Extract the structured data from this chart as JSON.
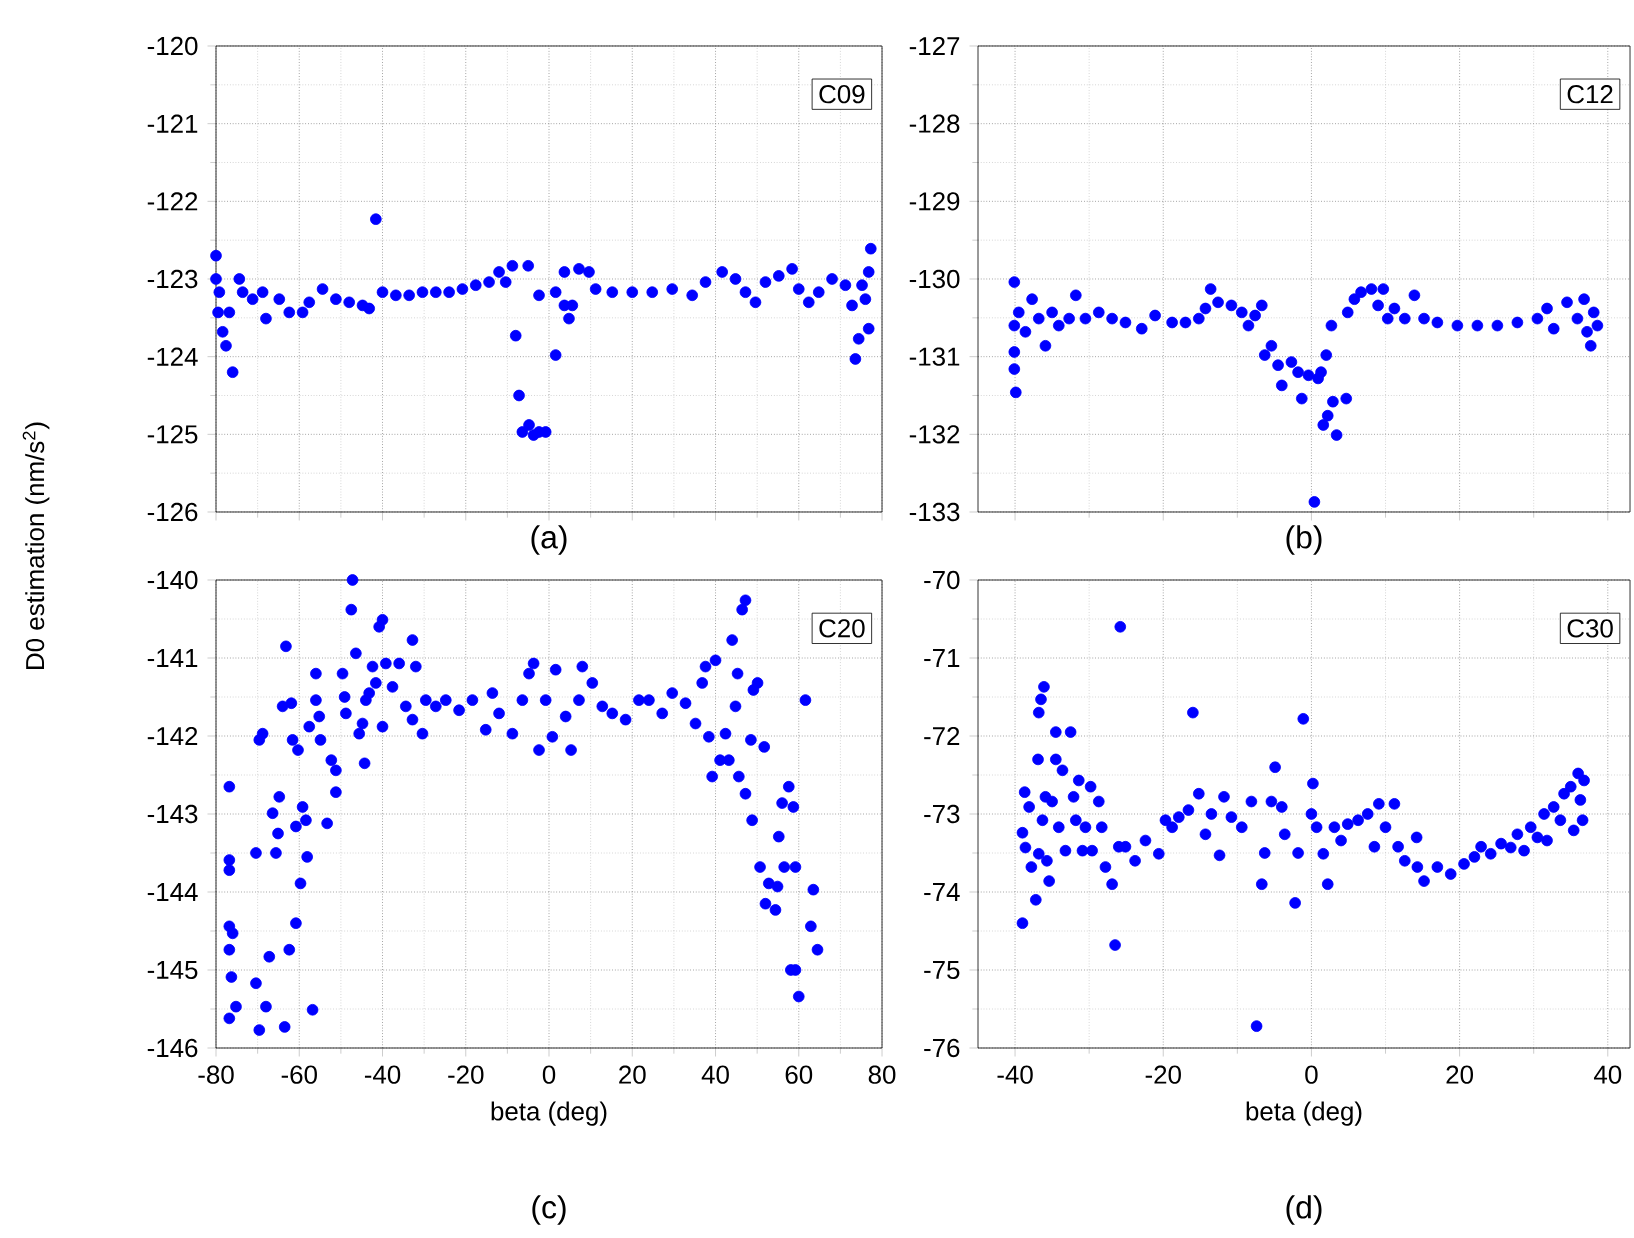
{
  "chart_data": [
    {
      "type": "scatter",
      "title": "C09",
      "ylabel": "D0 estimation (nm/s$^{2}$)",
      "annotations": [
        "(a)"
      ],
      "color": "#0000ff",
      "marker": "circle",
      "grid": true,
      "tick_labels": "y",
      "xlim": [
        -80,
        80
      ],
      "ylim": [
        -126,
        -120
      ],
      "xticks": [
        -80,
        -60,
        -40,
        -20,
        0,
        20,
        40,
        60,
        80
      ],
      "yticks": [
        -126,
        -125,
        -124,
        -123,
        -122,
        -121,
        -120
      ],
      "x": [
        -80,
        -80,
        -79.2,
        -79.5,
        -78.4,
        -77.6,
        -76,
        -76.8,
        -74.4,
        -73.6,
        -71.2,
        -68.8,
        -68,
        -64.8,
        -62.4,
        -59.2,
        -57.6,
        -54.4,
        -51.2,
        -48,
        -44.8,
        -43.2,
        -41.6,
        -40,
        -36.8,
        -33.6,
        -30.4,
        -27.2,
        -24,
        -20.8,
        -17.6,
        -14.4,
        -12,
        -10.4,
        -8.8,
        -8,
        -7.2,
        -6.4,
        -5,
        -4.8,
        -3.7,
        -2.4,
        -0.8,
        1.6,
        -2.4,
        1.6,
        3.7,
        4.8,
        5.6,
        3.7,
        7.2,
        9.6,
        11.2,
        15.2,
        20,
        24.8,
        29.6,
        34.4,
        37.6,
        41.6,
        44.8,
        47.2,
        49.6,
        52,
        55.2,
        58.4,
        60,
        62.4,
        64.8,
        68,
        71.2,
        72.8,
        73.6,
        74.4,
        75.2,
        76,
        76.8,
        77.3,
        76.8
      ],
      "values": [
        -122.7,
        -123.0,
        -123.17,
        -123.43,
        -123.68,
        -123.86,
        -124.2,
        -123.43,
        -123.0,
        -123.17,
        -123.26,
        -123.17,
        -123.51,
        -123.26,
        -123.43,
        -123.43,
        -123.3,
        -123.13,
        -123.26,
        -123.3,
        -123.34,
        -123.38,
        -122.23,
        -123.17,
        -123.21,
        -123.21,
        -123.17,
        -123.17,
        -123.17,
        -123.13,
        -123.08,
        -123.04,
        -122.91,
        -123.04,
        -122.83,
        -123.73,
        -124.5,
        -124.97,
        -122.83,
        -124.88,
        -125.01,
        -124.97,
        -124.97,
        -123.98,
        -123.21,
        -123.17,
        -123.34,
        -123.51,
        -123.34,
        -122.91,
        -122.87,
        -122.91,
        -123.13,
        -123.17,
        -123.17,
        -123.17,
        -123.13,
        -123.21,
        -123.04,
        -122.91,
        -123.0,
        -123.17,
        -123.3,
        -123.04,
        -122.96,
        -122.87,
        -123.13,
        -123.3,
        -123.17,
        -123.0,
        -123.08,
        -123.34,
        -124.03,
        -123.77,
        -123.08,
        -123.26,
        -122.91,
        -122.61,
        -123.64
      ]
    },
    {
      "type": "scatter",
      "title": "C12",
      "annotations": [
        "(b)"
      ],
      "color": "#0000ff",
      "marker": "circle",
      "grid": true,
      "tick_labels": "y",
      "xlim": [
        -45,
        43
      ],
      "ylim": [
        -133,
        -127
      ],
      "xticks": [
        -40,
        -20,
        0,
        20,
        40
      ],
      "yticks": [
        -133,
        -132,
        -131,
        -130,
        -129,
        -128,
        -127
      ],
      "x": [
        -40.1,
        -40.1,
        -40.1,
        -40.1,
        -39.9,
        -39.5,
        -38.6,
        -37.7,
        -36.8,
        -35.9,
        -35,
        -34.1,
        -32.7,
        -31.8,
        -30.5,
        -28.7,
        -26.9,
        -25.1,
        -22.9,
        -21.1,
        -18.8,
        -17,
        -15.2,
        -14.3,
        -13.6,
        -12.6,
        -10.8,
        -9.4,
        -8.5,
        -7.6,
        -6.7,
        -6.3,
        -5.4,
        -4.5,
        -4,
        -2.7,
        -1.8,
        -1.3,
        -0.4,
        0.4,
        0.9,
        1.3,
        1.6,
        2,
        2.2,
        2.7,
        2.9,
        3.4,
        4.7,
        4.9,
        5.8,
        6.7,
        8.1,
        9,
        9.7,
        10.3,
        11.2,
        12.6,
        13.9,
        15.2,
        17,
        19.7,
        22.4,
        25.1,
        27.8,
        30.5,
        31.8,
        32.7,
        34.5,
        35.9,
        36.8,
        37.2,
        37.7,
        38.1,
        38.6
      ],
      "values": [
        -130.04,
        -130.6,
        -130.94,
        -131.16,
        -131.46,
        -130.43,
        -130.68,
        -130.26,
        -130.51,
        -130.86,
        -130.43,
        -130.6,
        -130.51,
        -130.21,
        -130.51,
        -130.43,
        -130.51,
        -130.56,
        -130.64,
        -130.47,
        -130.56,
        -130.56,
        -130.51,
        -130.38,
        -130.13,
        -130.3,
        -130.34,
        -130.43,
        -130.6,
        -130.47,
        -130.34,
        -130.98,
        -130.86,
        -131.11,
        -131.37,
        -131.07,
        -131.2,
        -131.54,
        -131.24,
        -132.87,
        -131.28,
        -131.2,
        -131.88,
        -130.98,
        -131.76,
        -130.6,
        -131.58,
        -132.01,
        -131.54,
        -130.43,
        -130.26,
        -130.17,
        -130.13,
        -130.34,
        -130.13,
        -130.51,
        -130.38,
        -130.51,
        -130.21,
        -130.51,
        -130.56,
        -130.6,
        -130.6,
        -130.6,
        -130.56,
        -130.51,
        -130.38,
        -130.64,
        -130.3,
        -130.51,
        -130.26,
        -130.68,
        -130.86,
        -130.43,
        -130.6
      ]
    },
    {
      "type": "scatter",
      "title": "C20",
      "xlabel": "beta (deg)",
      "annotations": [
        "(c)"
      ],
      "color": "#0000ff",
      "marker": "circle",
      "grid": true,
      "xlim": [
        -80,
        80
      ],
      "ylim": [
        -146,
        -140
      ],
      "xticks": [
        -80,
        -60,
        -40,
        -20,
        0,
        20,
        40,
        60,
        80
      ],
      "yticks": [
        -146,
        -145,
        -144,
        -143,
        -142,
        -141,
        -140
      ],
      "x": [
        -76.8,
        -76.8,
        -76.8,
        -76.8,
        -76,
        -76.8,
        -76.3,
        -76.8,
        -75.2,
        -70.4,
        -70.4,
        -69.6,
        -68.8,
        -69.6,
        -68,
        -67.2,
        -66.4,
        -65.6,
        -65.1,
        -64.8,
        -64,
        -63.2,
        -63.5,
        -62.4,
        -61.9,
        -61.6,
        -60.8,
        -60.8,
        -60.3,
        -59.7,
        -59.2,
        -58.4,
        -58.1,
        -57.6,
        -56.8,
        -56,
        -56,
        -55.2,
        -54.9,
        -53.3,
        -52.3,
        -51.2,
        -51.2,
        -49.6,
        -49.1,
        -48.8,
        -47.5,
        -47.2,
        -46.4,
        -45.6,
        -44.8,
        -44.3,
        -44,
        -43.2,
        -42.4,
        -41.6,
        -40.8,
        -40,
        -40,
        -39.2,
        -37.6,
        -36,
        -34.4,
        -32.8,
        -32,
        -32.8,
        -30.4,
        -29.6,
        -27.2,
        -24.8,
        -21.6,
        -18.4,
        -15.2,
        -13.6,
        -12,
        -8.8,
        -6.4,
        -4.8,
        -3.7,
        -2.4,
        -0.8,
        0.8,
        1.6,
        4,
        5.3,
        7.2,
        8,
        10.4,
        12.8,
        15.2,
        18.4,
        21.6,
        24,
        27.2,
        29.6,
        32.8,
        35.2,
        36.8,
        37.6,
        38.4,
        39.2,
        40,
        41.1,
        42.4,
        43.2,
        44,
        44.8,
        45.3,
        45.6,
        46.4,
        47.2,
        47.2,
        48.5,
        48.8,
        49.1,
        50.1,
        50.7,
        51.7,
        52,
        52.8,
        54.4,
        54.9,
        55.2,
        56,
        56.5,
        57.6,
        58.1,
        58.7,
        59.2,
        59.2,
        60,
        61.6,
        62.9,
        63.5,
        64.5
      ],
      "values": [
        -142.65,
        -143.59,
        -143.72,
        -144.44,
        -144.53,
        -144.74,
        -145.09,
        -145.62,
        -145.47,
        -145.17,
        -143.5,
        -142.05,
        -141.97,
        -145.77,
        -145.47,
        -144.83,
        -142.99,
        -143.5,
        -143.25,
        -142.78,
        -141.62,
        -140.85,
        -145.73,
        -144.74,
        -141.58,
        -142.05,
        -143.16,
        -144.4,
        -142.18,
        -143.89,
        -142.91,
        -143.08,
        -143.55,
        -141.88,
        -145.51,
        -141.2,
        -141.54,
        -141.75,
        -142.05,
        -143.12,
        -142.31,
        -142.44,
        -142.72,
        -141.2,
        -141.5,
        -141.71,
        -140.38,
        -140.0,
        -140.94,
        -141.97,
        -141.84,
        -142.35,
        -141.54,
        -141.45,
        -141.11,
        -141.32,
        -140.6,
        -140.51,
        -141.88,
        -141.07,
        -141.37,
        -141.07,
        -141.62,
        -140.77,
        -141.11,
        -141.79,
        -141.97,
        -141.54,
        -141.62,
        -141.54,
        -141.67,
        -141.54,
        -141.92,
        -141.45,
        -141.71,
        -141.97,
        -141.54,
        -141.2,
        -141.07,
        -142.18,
        -141.54,
        -142.01,
        -141.15,
        -141.75,
        -142.18,
        -141.54,
        -141.11,
        -141.32,
        -141.62,
        -141.71,
        -141.79,
        -141.54,
        -141.54,
        -141.71,
        -141.45,
        -141.58,
        -141.84,
        -141.32,
        -141.11,
        -142.01,
        -142.52,
        -141.03,
        -142.31,
        -141.97,
        -142.31,
        -140.77,
        -141.62,
        -141.2,
        -142.52,
        -140.38,
        -140.26,
        -142.74,
        -142.05,
        -143.08,
        -141.41,
        -141.32,
        -143.68,
        -142.14,
        -144.15,
        -143.89,
        -144.23,
        -143.93,
        -143.29,
        -142.86,
        -143.68,
        -142.65,
        -145.0,
        -142.91,
        -143.68,
        -145.0,
        -145.34,
        -141.54,
        -144.44,
        -143.97,
        -144.74
      ]
    },
    {
      "type": "scatter",
      "title": "C30",
      "xlabel": "beta (deg)",
      "annotations": [
        "(d)"
      ],
      "color": "#0000ff",
      "marker": "circle",
      "grid": true,
      "xlim": [
        -45,
        43
      ],
      "ylim": [
        -76,
        -70
      ],
      "xticks": [
        -40,
        -20,
        0,
        20,
        40
      ],
      "yticks": [
        -76,
        -75,
        -74,
        -73,
        -72,
        -71,
        -70
      ],
      "x": [
        -38.7,
        -39,
        -39,
        -38.6,
        -38.1,
        -37.8,
        -37.2,
        -36.9,
        -36.8,
        -36.5,
        -36.1,
        -36.8,
        -36.3,
        -35.9,
        -35.7,
        -35.4,
        -35,
        -34.5,
        -34.5,
        -34.1,
        -33.6,
        -33.2,
        -32.5,
        -32.1,
        -31.8,
        -31.4,
        -30.9,
        -30.5,
        -29.8,
        -29.6,
        -28.7,
        -28.3,
        -27.8,
        -26.9,
        -26.5,
        -25.8,
        -26,
        -25.1,
        -23.8,
        -22.4,
        -20.6,
        -19.7,
        -18.8,
        -17.9,
        -16.6,
        -16,
        -15.2,
        -14.3,
        -13.5,
        -12.4,
        -11.8,
        -10.8,
        -9.4,
        -8.1,
        -7.4,
        -6.7,
        -6.3,
        -5.4,
        -4.9,
        -4,
        -3.6,
        -2.2,
        -1.8,
        -1.1,
        0,
        0.2,
        0.7,
        1.6,
        2.2,
        3.1,
        4,
        4.9,
        6.3,
        7.6,
        8.5,
        9.1,
        10,
        11.2,
        11.7,
        12.6,
        14.2,
        14.3,
        15.2,
        17,
        18.8,
        20.6,
        22,
        22.9,
        24.2,
        25.6,
        26.9,
        27.8,
        28.7,
        29.6,
        30.5,
        31.4,
        31.8,
        32.7,
        33.6,
        34.1,
        35,
        35.4,
        36,
        36.3,
        36.6,
        36.8
      ],
      "values": [
        -72.72,
        -73.24,
        -74.4,
        -73.43,
        -72.91,
        -73.68,
        -74.1,
        -72.3,
        -71.7,
        -71.53,
        -71.37,
        -73.51,
        -73.08,
        -72.78,
        -73.6,
        -73.86,
        -72.84,
        -72.3,
        -71.95,
        -73.17,
        -72.44,
        -73.47,
        -71.95,
        -72.78,
        -73.08,
        -72.57,
        -73.47,
        -73.17,
        -72.65,
        -73.47,
        -72.84,
        -73.17,
        -73.68,
        -73.9,
        -74.68,
        -70.6,
        -73.42,
        -73.42,
        -73.6,
        -73.34,
        -73.51,
        -73.08,
        -73.17,
        -73.04,
        -72.95,
        -71.7,
        -72.74,
        -73.26,
        -73.0,
        -73.53,
        -72.78,
        -73.04,
        -73.17,
        -72.84,
        -75.72,
        -73.9,
        -73.5,
        -72.84,
        -72.4,
        -72.91,
        -73.26,
        -74.14,
        -73.5,
        -71.78,
        -73.0,
        -72.61,
        -73.17,
        -73.51,
        -73.9,
        -73.17,
        -73.34,
        -73.13,
        -73.08,
        -73.0,
        -73.42,
        -72.87,
        -73.17,
        -72.87,
        -73.42,
        -73.6,
        -73.3,
        -73.68,
        -73.86,
        -73.68,
        -73.77,
        -73.64,
        -73.55,
        -73.42,
        -73.51,
        -73.38,
        -73.43,
        -73.26,
        -73.47,
        -73.17,
        -73.3,
        -73.0,
        -73.34,
        -72.91,
        -73.08,
        -72.74,
        -72.65,
        -73.21,
        -72.48,
        -72.82,
        -73.08,
        -72.57
      ]
    }
  ]
}
